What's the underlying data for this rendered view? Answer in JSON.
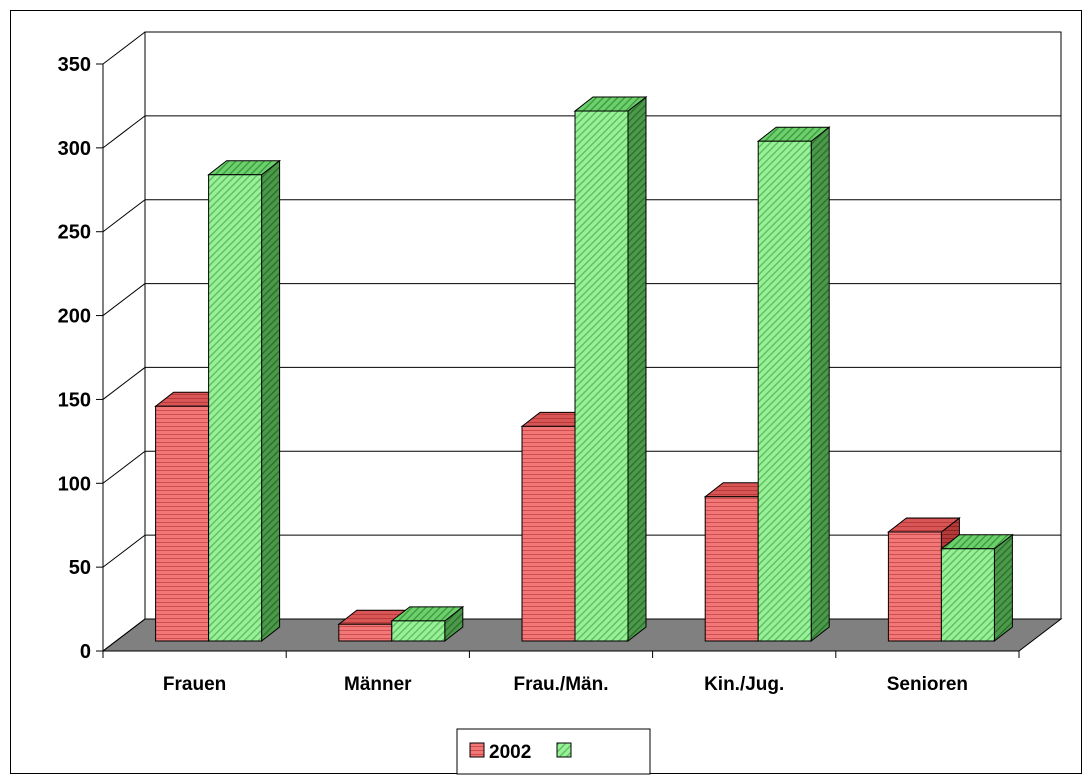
{
  "chart_data": {
    "type": "bar",
    "categories": [
      "Frauen",
      "Männer",
      "Frau./Män.",
      "Kin./Jug.",
      "Senioren"
    ],
    "series": [
      {
        "name": "2002",
        "values": [
          140,
          10,
          128,
          86,
          65
        ],
        "color": "#f07878",
        "side_color": "#a83030",
        "pattern": "horizontal-stripes"
      },
      {
        "name": "",
        "values": [
          278,
          12,
          316,
          298,
          55
        ],
        "color": "#90ee90",
        "side_color": "#3c8a3c",
        "pattern": "diagonal-stripes"
      }
    ],
    "ylim": [
      0,
      350
    ],
    "yticks": [
      0,
      50,
      100,
      150,
      200,
      250,
      300,
      350
    ],
    "title": "",
    "xlabel": "",
    "ylabel": "",
    "grid": true,
    "view": "3d",
    "floor_color": "#808080",
    "legend_position": "bottom"
  }
}
